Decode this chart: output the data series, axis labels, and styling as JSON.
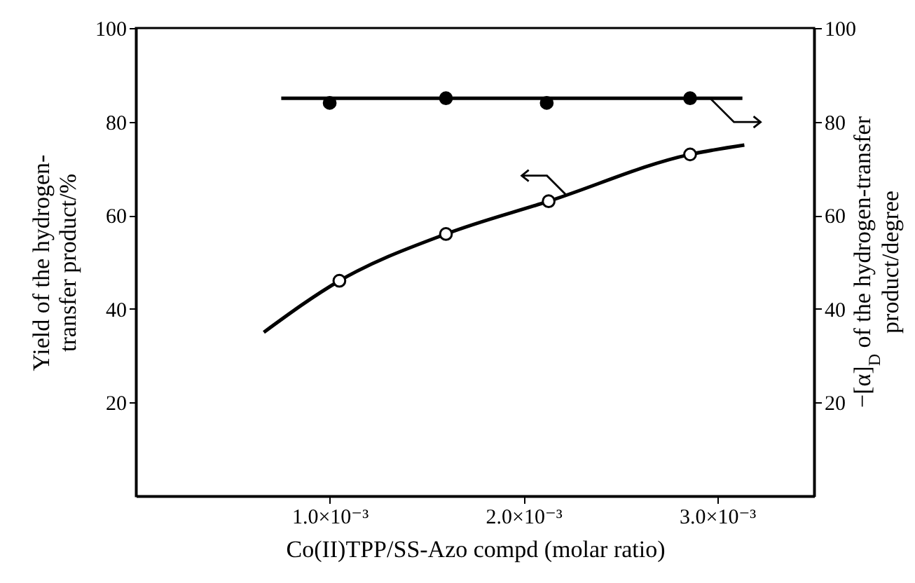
{
  "chart_data": {
    "type": "scatter",
    "xlabel": "Co(II)TPP/SS-Azo compd (molar ratio)",
    "ylabel": "Yield of the hydrogen-\ntransfer product/%",
    "y2label": "−[α]$_{D}$ of the hydrogen-transfer\nproduct/degree",
    "xlim": [
      0,
      0.0035
    ],
    "xticks": [
      {
        "value": 0.001,
        "label": "1.0×10⁻³"
      },
      {
        "value": 0.002,
        "label": "2.0×10⁻³"
      },
      {
        "value": 0.003,
        "label": "3.0×10⁻³"
      }
    ],
    "ylim": [
      0,
      100
    ],
    "yticks": [
      20,
      40,
      60,
      80,
      100
    ],
    "y2lim": [
      0,
      100
    ],
    "y2ticks": [
      20,
      40,
      60,
      80,
      100
    ],
    "grid": false,
    "series": [
      {
        "type": "line",
        "axis": "y2",
        "color": "#000000",
        "x": [
          0.00075,
          0.00313
        ],
        "values": [
          85,
          85
        ]
      },
      {
        "axis": "y2",
        "color": "#000000",
        "marker": "circle",
        "x": [
          0.001,
          0.0016,
          0.00212,
          0.00286
        ],
        "values": [
          84,
          85,
          84,
          85
        ]
      },
      {
        "type": "line",
        "axis": "y",
        "color": "#000000",
        "x": [
          0.00066,
          0.00105,
          0.0016,
          0.00213,
          0.00286,
          0.00314
        ],
        "values": [
          35,
          46,
          56,
          63,
          73,
          75
        ]
      },
      {
        "axis": "y",
        "color": "#ffffff",
        "marker": "circle",
        "x": [
          0.00105,
          0.0016,
          0.00213,
          0.00286
        ],
        "values": [
          46,
          56,
          63,
          73
        ]
      }
    ]
  }
}
